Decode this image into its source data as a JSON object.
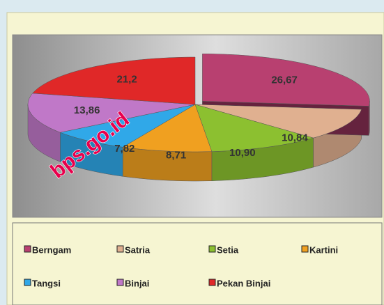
{
  "chart_data": {
    "type": "pie",
    "categories": [
      "Berngam",
      "Satria",
      "Setia",
      "Kartini",
      "Tangsi",
      "Binjai",
      "Pekan Binjai"
    ],
    "values": [
      26.67,
      10.84,
      10.9,
      8.71,
      7.82,
      13.86,
      21.2
    ],
    "value_labels": [
      "26,67",
      "10,84",
      "10,90",
      "8,71",
      "7,82",
      "13,86",
      "21,2"
    ],
    "colors": [
      "#b84070",
      "#e0b090",
      "#8cc030",
      "#f0a020",
      "#30a8e8",
      "#c078c8",
      "#e02828"
    ],
    "watermark": "bps.go.id"
  }
}
